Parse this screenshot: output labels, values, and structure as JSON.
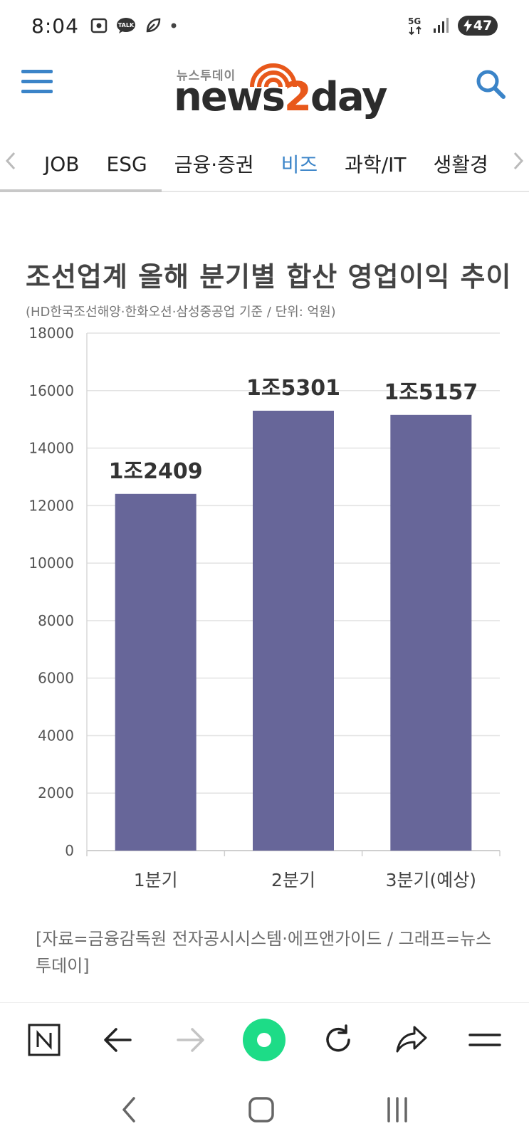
{
  "status_bar": {
    "time": "8:04",
    "network": "5G",
    "battery": "47"
  },
  "header": {
    "logo_small": "뉴스투데이",
    "logo_main_a": "news",
    "logo_main_two": "2",
    "logo_main_b": "day"
  },
  "tabs": [
    {
      "label": "JOB"
    },
    {
      "label": "ESG"
    },
    {
      "label": "금융·증권"
    },
    {
      "label": "비즈"
    },
    {
      "label": "과학/IT"
    },
    {
      "label": "생활경"
    }
  ],
  "article": {
    "chart_title": "조선업계 올해 분기별 합산 영업이익 추이",
    "chart_subtitle": "(HD한국조선해양·한화오션·삼성중공업 기준 / 단위: 억원)",
    "caption": "[자료=금융감독원 전자공시시스템·에프앤가이드 / 그래프=뉴스투데이]"
  },
  "chart_data": {
    "type": "bar",
    "categories": [
      "1분기",
      "2분기",
      "3분기(예상)"
    ],
    "values": [
      12409,
      15301,
      15157
    ],
    "data_labels": [
      "1조2409",
      "1조5301",
      "1조5157"
    ],
    "y_ticks": [
      "0",
      "2000",
      "4000",
      "6000",
      "8000",
      "10000",
      "12000",
      "14000",
      "16000",
      "18000"
    ],
    "ylim": [
      0,
      18000
    ],
    "grid": true,
    "bar_color": "#676699"
  },
  "colors": {
    "accent": "#3b84c8",
    "logo_orange": "#e8581b",
    "bar": "#676699"
  }
}
